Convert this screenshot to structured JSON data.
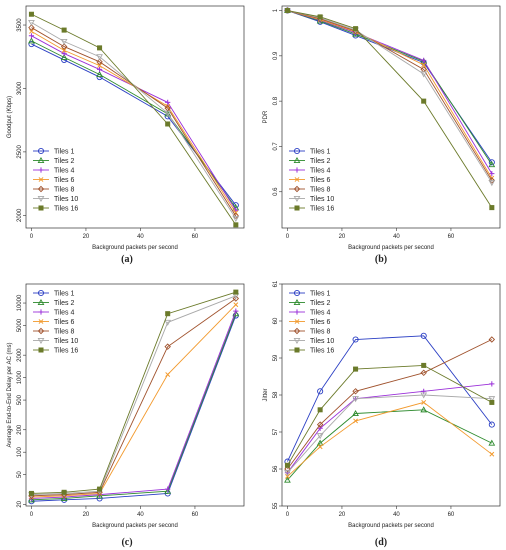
{
  "chart_data": [
    {
      "type": "line",
      "panel": "(a)",
      "xlabel": "Background packets per second",
      "ylabel": "Goodput (Kbps)",
      "x": [
        0,
        12,
        25,
        50,
        75
      ],
      "xticks": [
        0,
        20,
        40,
        60
      ],
      "ylim": [
        1900,
        3650
      ],
      "yticks": [
        2000,
        2500,
        3000,
        3500
      ],
      "log_y": false,
      "legend_position": "bottom-left",
      "series": [
        {
          "name": "Tiles 1",
          "values": [
            3350,
            3225,
            3090,
            2780,
            2080
          ]
        },
        {
          "name": "Tiles 2",
          "values": [
            3375,
            3245,
            3110,
            2800,
            2060
          ]
        },
        {
          "name": "Tiles 4",
          "values": [
            3415,
            3275,
            3150,
            2890,
            2040
          ]
        },
        {
          "name": "Tiles 6",
          "values": [
            3450,
            3300,
            3180,
            2860,
            2020
          ]
        },
        {
          "name": "Tiles 8",
          "values": [
            3480,
            3330,
            3210,
            2845,
            1995
          ]
        },
        {
          "name": "Tiles 10",
          "values": [
            3520,
            3370,
            3250,
            2805,
            1975
          ]
        },
        {
          "name": "Tiles 16",
          "values": [
            3585,
            3460,
            3320,
            2720,
            1925
          ]
        }
      ]
    },
    {
      "type": "line",
      "panel": "(b)",
      "xlabel": "Background packets per second",
      "ylabel": "PDR",
      "x": [
        0,
        12,
        25,
        50,
        75
      ],
      "xticks": [
        0,
        20,
        40,
        60
      ],
      "ylim": [
        0.52,
        1.01
      ],
      "yticks": [
        0.6,
        0.7,
        0.8,
        0.9,
        1.0
      ],
      "log_y": false,
      "legend_position": "bottom-left",
      "series": [
        {
          "name": "Tiles 1",
          "values": [
            1.0,
            0.975,
            0.945,
            0.885,
            0.665
          ]
        },
        {
          "name": "Tiles 2",
          "values": [
            1.0,
            0.977,
            0.948,
            0.888,
            0.66
          ]
        },
        {
          "name": "Tiles 4",
          "values": [
            1.0,
            0.979,
            0.951,
            0.89,
            0.64
          ]
        },
        {
          "name": "Tiles 6",
          "values": [
            1.0,
            0.98,
            0.953,
            0.88,
            0.63
          ]
        },
        {
          "name": "Tiles 8",
          "values": [
            1.0,
            0.982,
            0.955,
            0.87,
            0.625
          ]
        },
        {
          "name": "Tiles 10",
          "values": [
            1.0,
            0.984,
            0.957,
            0.86,
            0.62
          ]
        },
        {
          "name": "Tiles 16",
          "values": [
            1.0,
            0.986,
            0.96,
            0.8,
            0.565
          ]
        }
      ]
    },
    {
      "type": "line",
      "panel": "(c)",
      "xlabel": "Background packets per second",
      "ylabel": "Average End-to-End Delay per AC (ms)",
      "x": [
        0,
        12,
        25,
        50,
        75
      ],
      "xticks": [
        0,
        20,
        40,
        60
      ],
      "ylim": [
        19,
        18000
      ],
      "yticks": [
        20,
        50,
        100,
        200,
        500,
        1000,
        2000,
        5000,
        10000
      ],
      "ytick_labels": [
        "20",
        "50",
        "100",
        "200",
        "500",
        "1000",
        "2000",
        "5000",
        "10000"
      ],
      "log_y": true,
      "legend_position": "top-left",
      "series": [
        {
          "name": "Tiles 1",
          "values": [
            22,
            23,
            24,
            28,
            6800
          ]
        },
        {
          "name": "Tiles 2",
          "values": [
            23,
            24,
            26,
            30,
            7200
          ]
        },
        {
          "name": "Tiles 4",
          "values": [
            24,
            25,
            27,
            32,
            7800
          ]
        },
        {
          "name": "Tiles 6",
          "values": [
            25,
            26,
            28,
            1100,
            9500
          ]
        },
        {
          "name": "Tiles 8",
          "values": [
            26,
            27,
            29,
            2600,
            11500
          ]
        },
        {
          "name": "Tiles 10",
          "values": [
            27,
            28,
            30,
            5500,
            12500
          ]
        },
        {
          "name": "Tiles 16",
          "values": [
            28,
            29,
            32,
            7200,
            14000
          ]
        }
      ]
    },
    {
      "type": "line",
      "panel": "(d)",
      "xlabel": "Background packets per second",
      "ylabel": "Jitter",
      "x": [
        0,
        12,
        25,
        50,
        75
      ],
      "xticks": [
        0,
        20,
        40,
        60
      ],
      "ylim": [
        55,
        61
      ],
      "yticks": [
        55,
        56,
        57,
        58,
        59,
        60,
        61
      ],
      "log_y": false,
      "legend_position": "top-left",
      "series": [
        {
          "name": "Tiles 1",
          "values": [
            56.2,
            58.1,
            59.5,
            59.6,
            57.2
          ]
        },
        {
          "name": "Tiles 2",
          "values": [
            55.7,
            56.7,
            57.5,
            57.6,
            56.7
          ]
        },
        {
          "name": "Tiles 4",
          "values": [
            55.9,
            57.1,
            57.9,
            58.1,
            58.3
          ]
        },
        {
          "name": "Tiles 6",
          "values": [
            55.8,
            56.6,
            57.3,
            57.8,
            56.4
          ]
        },
        {
          "name": "Tiles 8",
          "values": [
            56.0,
            57.2,
            58.1,
            58.6,
            59.5
          ]
        },
        {
          "name": "Tiles 10",
          "values": [
            55.9,
            56.9,
            57.9,
            58.0,
            57.9
          ]
        },
        {
          "name": "Tiles 16",
          "values": [
            56.1,
            57.6,
            58.7,
            58.8,
            57.8
          ]
        }
      ]
    }
  ],
  "series_styles": [
    {
      "color": "#2b3fc4",
      "marker": "circle"
    },
    {
      "color": "#2e8b2e",
      "marker": "triangle"
    },
    {
      "color": "#9b30d9",
      "marker": "plus"
    },
    {
      "color": "#f29a2e",
      "marker": "cross"
    },
    {
      "color": "#a0522d",
      "marker": "diamond"
    },
    {
      "color": "#a9a9a9",
      "marker": "triangle-down"
    },
    {
      "color": "#6b7a2a",
      "marker": "square"
    }
  ]
}
